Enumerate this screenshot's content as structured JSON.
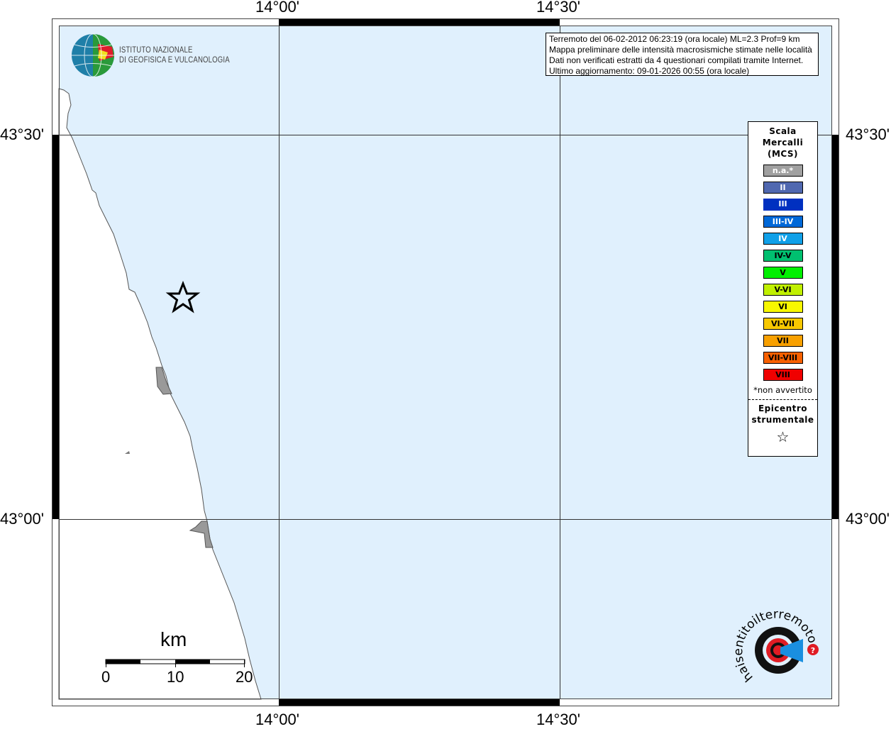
{
  "map": {
    "longitude_ticks": [
      "14°00'",
      "14°30'"
    ],
    "latitude_ticks": [
      "43°30'",
      "43°00'"
    ],
    "sea_color": "#e0f0fd",
    "land_color": "#ffffff"
  },
  "logo_ingv": {
    "line1": "ISTITUTO NAZIONALE",
    "line2": "DI GEOFISICA E VULCANOLOGIA"
  },
  "info": {
    "lines": [
      "Terremoto del 06-02-2012 06:23:19 (ora locale) ML=2.3 Prof=9 km",
      "Mappa preliminare delle intensità macrosismiche stimate nelle località",
      "Dati non verificati estratti da 4 questionari compilati tramite Internet.",
      "Ultimo aggiornamento: 09-01-2026 00:55 (ora locale)"
    ]
  },
  "legend": {
    "title_lines": [
      "Scala",
      "Mercalli",
      "(MCS)"
    ],
    "items": [
      {
        "label": "n.a.*",
        "color": "#a0a0a0",
        "text_color": "#ffffff"
      },
      {
        "label": "II",
        "color": "#5068b0",
        "text_color": "#ffffff"
      },
      {
        "label": "III",
        "color": "#0030c0",
        "text_color": "#ffffff"
      },
      {
        "label": "III-IV",
        "color": "#0068d8",
        "text_color": "#ffffff"
      },
      {
        "label": "IV",
        "color": "#10a0e8",
        "text_color": "#ffffff"
      },
      {
        "label": "IV-V",
        "color": "#00c070",
        "text_color": "#000000"
      },
      {
        "label": "V",
        "color": "#00f000",
        "text_color": "#000000"
      },
      {
        "label": "V-VI",
        "color": "#c0f000",
        "text_color": "#000000"
      },
      {
        "label": "VI",
        "color": "#f8f800",
        "text_color": "#000000"
      },
      {
        "label": "VI-VII",
        "color": "#f8c800",
        "text_color": "#000000"
      },
      {
        "label": "VII",
        "color": "#f8a000",
        "text_color": "#000000"
      },
      {
        "label": "VII-VIII",
        "color": "#f86000",
        "text_color": "#000000"
      },
      {
        "label": "VIII",
        "color": "#f00000",
        "text_color": "#000000"
      }
    ],
    "note": "*non avvertito",
    "epicenter_lines": [
      "Epicentro",
      "strumentale"
    ],
    "epicenter_icon": "star-outline-icon"
  },
  "scalebar": {
    "unit": "km",
    "labels": [
      "0",
      "10",
      "20"
    ]
  },
  "logo_haisentito": {
    "text": "www.haisentitoilterremoto.it",
    "icon": "target-megaphone-icon"
  }
}
